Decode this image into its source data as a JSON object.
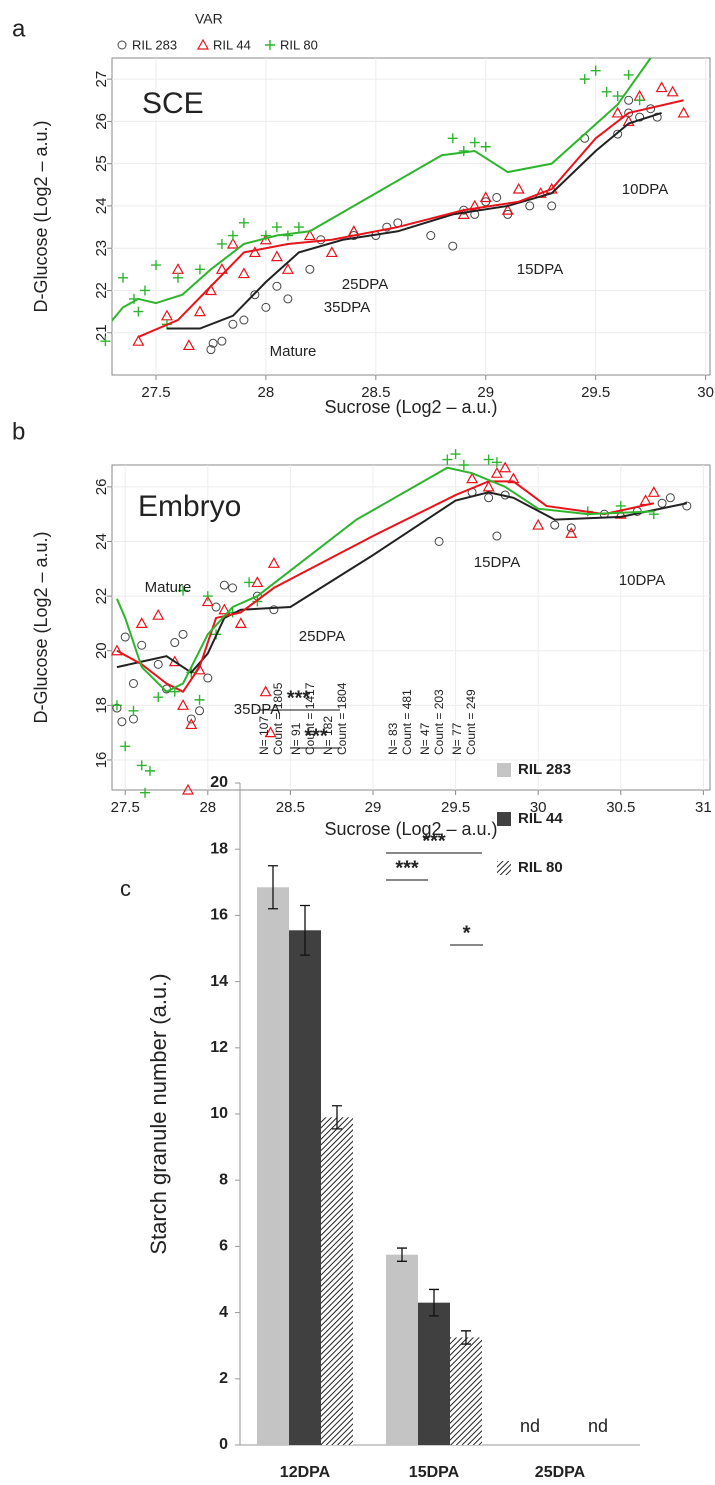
{
  "chart_data": [
    {
      "type": "scatter",
      "panel": "a",
      "title": "SCE",
      "xlabel": "Sucrose (Log2 – a.u.)",
      "ylabel": "D-Glucose (Log2 – a.u.)",
      "legend_title": "VAR",
      "xlim": [
        27.3,
        30.02
      ],
      "ylim": [
        20,
        27.5
      ],
      "xticks": [
        27.5,
        28,
        28.5,
        29,
        29.5,
        30
      ],
      "yticks": [
        21,
        22,
        23,
        24,
        25,
        26,
        27
      ],
      "grid": true,
      "series": [
        {
          "name": "RIL 283",
          "color": "#444444",
          "marker": "circle",
          "x": [
            27.75,
            27.76,
            27.8,
            27.85,
            27.9,
            27.95,
            28.0,
            28.05,
            28.1,
            28.2,
            28.25,
            28.4,
            28.5,
            28.55,
            28.6,
            28.75,
            28.85,
            28.9,
            28.95,
            29.0,
            29.05,
            29.1,
            29.2,
            29.3,
            29.45,
            29.6,
            29.65,
            29.7,
            29.75,
            29.78,
            29.65
          ],
          "y": [
            20.6,
            20.75,
            20.8,
            21.2,
            21.3,
            21.9,
            21.6,
            22.1,
            21.8,
            22.5,
            23.2,
            23.3,
            23.3,
            23.5,
            23.6,
            23.3,
            23.05,
            23.9,
            23.8,
            24.1,
            24.2,
            23.8,
            24.0,
            24.0,
            25.6,
            25.7,
            26.2,
            26.1,
            26.3,
            26.1,
            26.5
          ]
        },
        {
          "name": "RIL 44",
          "color": "#e8141b",
          "marker": "triangle",
          "x": [
            27.42,
            27.55,
            27.6,
            27.65,
            27.7,
            27.75,
            27.8,
            27.85,
            27.9,
            27.95,
            28.0,
            28.05,
            28.1,
            28.2,
            28.3,
            28.4,
            28.9,
            28.95,
            29.0,
            29.1,
            29.15,
            29.25,
            29.3,
            29.6,
            29.65,
            29.7,
            29.8,
            29.9,
            29.85
          ],
          "y": [
            20.8,
            21.4,
            22.5,
            20.7,
            21.5,
            22.0,
            22.5,
            23.1,
            22.4,
            22.9,
            23.2,
            22.8,
            22.5,
            23.3,
            22.9,
            23.4,
            23.8,
            24.0,
            24.2,
            23.9,
            24.4,
            24.3,
            24.4,
            26.2,
            26.0,
            26.6,
            26.8,
            26.2,
            26.7
          ]
        },
        {
          "name": "RIL 80",
          "color": "#2db52d",
          "marker": "plus",
          "x": [
            27.27,
            27.35,
            27.4,
            27.42,
            27.45,
            27.5,
            27.55,
            27.6,
            27.7,
            27.8,
            27.85,
            27.9,
            28.0,
            28.05,
            28.1,
            28.15,
            28.85,
            28.9,
            28.95,
            29.0,
            29.45,
            29.5,
            29.55,
            29.6,
            29.65,
            29.7
          ],
          "y": [
            20.8,
            22.3,
            21.8,
            21.5,
            22.0,
            22.6,
            21.2,
            22.3,
            22.5,
            23.1,
            23.3,
            23.6,
            23.3,
            23.5,
            23.3,
            23.5,
            25.6,
            25.3,
            25.5,
            25.4,
            27.0,
            27.2,
            26.7,
            26.6,
            27.1,
            26.5
          ]
        }
      ],
      "trend_lines": [
        {
          "color": "#222222",
          "x": [
            27.55,
            27.7,
            27.85,
            28.0,
            28.15,
            28.35,
            28.6,
            28.85,
            29.1,
            29.3,
            29.5,
            29.65,
            29.8
          ],
          "y": [
            21.1,
            21.1,
            21.4,
            22.2,
            22.9,
            23.2,
            23.4,
            23.8,
            24.0,
            24.3,
            25.3,
            25.95,
            26.2
          ]
        },
        {
          "color": "#e8141b",
          "x": [
            27.42,
            27.6,
            27.75,
            27.9,
            28.1,
            28.3,
            28.6,
            28.9,
            29.15,
            29.3,
            29.5,
            29.65,
            29.9
          ],
          "y": [
            20.9,
            21.3,
            22.1,
            22.9,
            23.1,
            23.2,
            23.5,
            23.9,
            24.1,
            24.4,
            25.6,
            26.2,
            26.5
          ]
        },
        {
          "color": "#2db52d",
          "x": [
            27.27,
            27.35,
            27.42,
            27.5,
            27.62,
            27.75,
            27.9,
            28.05,
            28.2,
            28.5,
            28.8,
            28.95,
            29.1,
            29.3,
            29.45,
            29.6,
            29.75
          ],
          "y": [
            21.1,
            21.6,
            21.8,
            21.7,
            21.9,
            22.5,
            23.1,
            23.3,
            23.4,
            24.3,
            25.2,
            25.3,
            24.8,
            25.0,
            25.7,
            26.4,
            27.5
          ]
        }
      ],
      "annotations": [
        "10DPA",
        "15DPA",
        "25DPA",
        "35DPA",
        "Mature"
      ]
    },
    {
      "type": "scatter",
      "panel": "b",
      "title": "Embryo",
      "xlabel": "Sucrose (Log2 – a.u.)",
      "ylabel": "D-Glucose (Log2 – a.u.)",
      "xlim": [
        27.42,
        31.04
      ],
      "ylim": [
        14.9,
        26.8
      ],
      "xticks": [
        27.5,
        28,
        28.5,
        29,
        29.5,
        30,
        30.5,
        31
      ],
      "yticks": [
        16,
        18,
        20,
        22,
        24,
        26
      ],
      "grid": true,
      "series": [
        {
          "color": "#444444",
          "marker": "circle",
          "x": [
            27.45,
            27.48,
            27.5,
            27.55,
            27.55,
            27.6,
            27.7,
            27.75,
            27.8,
            27.85,
            27.9,
            27.95,
            28.0,
            28.05,
            28.1,
            28.15,
            28.3,
            28.4,
            29.4,
            29.6,
            29.7,
            29.75,
            29.8,
            30.1,
            30.2,
            30.4,
            30.6,
            30.75,
            30.8,
            30.9
          ],
          "y": [
            17.9,
            17.4,
            20.5,
            18.8,
            17.5,
            20.2,
            19.5,
            18.6,
            20.3,
            20.6,
            17.5,
            17.8,
            19.0,
            21.6,
            22.4,
            22.3,
            22.0,
            21.5,
            24.0,
            25.8,
            25.6,
            24.2,
            25.7,
            24.6,
            24.5,
            25.0,
            25.1,
            25.4,
            25.6,
            25.3
          ]
        },
        {
          "color": "#e8141b",
          "marker": "triangle",
          "x": [
            27.45,
            27.6,
            27.7,
            27.8,
            27.85,
            27.88,
            27.9,
            27.95,
            28.0,
            28.1,
            28.2,
            28.3,
            28.35,
            28.38,
            28.4,
            29.6,
            29.7,
            29.75,
            29.8,
            29.85,
            30.0,
            30.2,
            30.5,
            30.65,
            30.7
          ],
          "y": [
            20.0,
            21.0,
            21.3,
            19.6,
            18.0,
            14.9,
            17.3,
            19.3,
            21.8,
            21.5,
            21.0,
            22.5,
            18.5,
            17.0,
            23.2,
            26.3,
            26.0,
            26.5,
            26.7,
            26.3,
            24.6,
            24.3,
            25.0,
            25.5,
            25.8
          ]
        },
        {
          "color": "#2db52d",
          "marker": "plus",
          "x": [
            27.45,
            27.5,
            27.55,
            27.6,
            27.62,
            27.65,
            27.7,
            27.8,
            27.85,
            27.9,
            27.95,
            28.0,
            28.05,
            28.15,
            28.25,
            28.3,
            29.45,
            29.5,
            29.55,
            29.7,
            29.75,
            30.3,
            30.5,
            30.7
          ],
          "y": [
            18.0,
            16.5,
            17.8,
            15.8,
            14.8,
            15.6,
            18.3,
            18.5,
            22.2,
            19.2,
            18.2,
            22.0,
            20.6,
            21.4,
            22.5,
            21.8,
            27.0,
            27.2,
            26.8,
            27.0,
            26.9,
            25.1,
            25.3,
            25.0
          ]
        }
      ],
      "trend_lines": [
        {
          "color": "#222222",
          "x": [
            27.45,
            27.6,
            27.75,
            27.9,
            28.0,
            28.1,
            28.2,
            28.5,
            29.0,
            29.5,
            29.7,
            29.85,
            30.1,
            30.5,
            30.9
          ],
          "y": [
            19.4,
            19.6,
            19.8,
            19.2,
            19.9,
            21.2,
            21.5,
            21.6,
            23.5,
            25.5,
            25.8,
            25.6,
            24.8,
            24.9,
            25.4
          ]
        },
        {
          "color": "#e8141b",
          "x": [
            27.45,
            27.6,
            27.75,
            27.85,
            27.95,
            28.05,
            28.2,
            28.4,
            29.0,
            29.5,
            29.7,
            29.85,
            30.05,
            30.4,
            30.7
          ],
          "y": [
            20.0,
            19.5,
            18.8,
            18.5,
            19.4,
            21.2,
            21.4,
            22.3,
            24.2,
            25.7,
            26.2,
            26.2,
            25.3,
            25.0,
            25.4
          ]
        },
        {
          "color": "#2db52d",
          "x": [
            27.45,
            27.5,
            27.6,
            27.75,
            27.85,
            28.0,
            28.15,
            28.3,
            28.9,
            29.45,
            29.6,
            29.8,
            30.0,
            30.3,
            30.7
          ],
          "y": [
            21.9,
            21.2,
            19.4,
            18.5,
            18.8,
            20.6,
            21.6,
            22.0,
            24.8,
            26.7,
            26.5,
            26.0,
            25.2,
            25.0,
            25.1
          ]
        }
      ],
      "annotations": [
        "Mature",
        "25DPA",
        "35DPA",
        "15DPA",
        "10DPA"
      ]
    },
    {
      "type": "bar",
      "panel": "c",
      "ylabel": "Starch granule number (a.u.)",
      "categories": [
        "12DPA",
        "15DPA",
        "25DPA"
      ],
      "ylim": [
        0,
        20
      ],
      "yticks": [
        0,
        2,
        4,
        6,
        8,
        10,
        12,
        14,
        16,
        18,
        20
      ],
      "series": [
        {
          "name": "RIL 283",
          "color": "#c4c4c4",
          "values": [
            16.85,
            5.75,
            null
          ],
          "errors": [
            0.65,
            0.2,
            null
          ],
          "value_labels": [
            null,
            null,
            "nd"
          ]
        },
        {
          "name": "RIL 44",
          "color": "#404040",
          "values": [
            15.55,
            4.3,
            null
          ],
          "errors": [
            0.75,
            0.4,
            null
          ],
          "value_labels": [
            null,
            null,
            "nd"
          ]
        },
        {
          "name": "RIL 80",
          "color": "#222222",
          "pattern": "hatch",
          "values": [
            9.9,
            3.25,
            null
          ],
          "errors": [
            0.35,
            0.2,
            null
          ]
        }
      ],
      "sample_labels": [
        [
          [
            "N= 107",
            "Count = 1805"
          ],
          [
            "N= 91",
            "Count = 1417"
          ],
          [
            "N= 182",
            "Count = 1804"
          ]
        ],
        [
          [
            "N= 83",
            "Count = 481"
          ],
          [
            "N= 47",
            "Count = 203"
          ],
          [
            "N= 77",
            "Count = 249"
          ]
        ]
      ],
      "significance": [
        "***",
        "***",
        "***",
        "***",
        "*"
      ]
    }
  ]
}
